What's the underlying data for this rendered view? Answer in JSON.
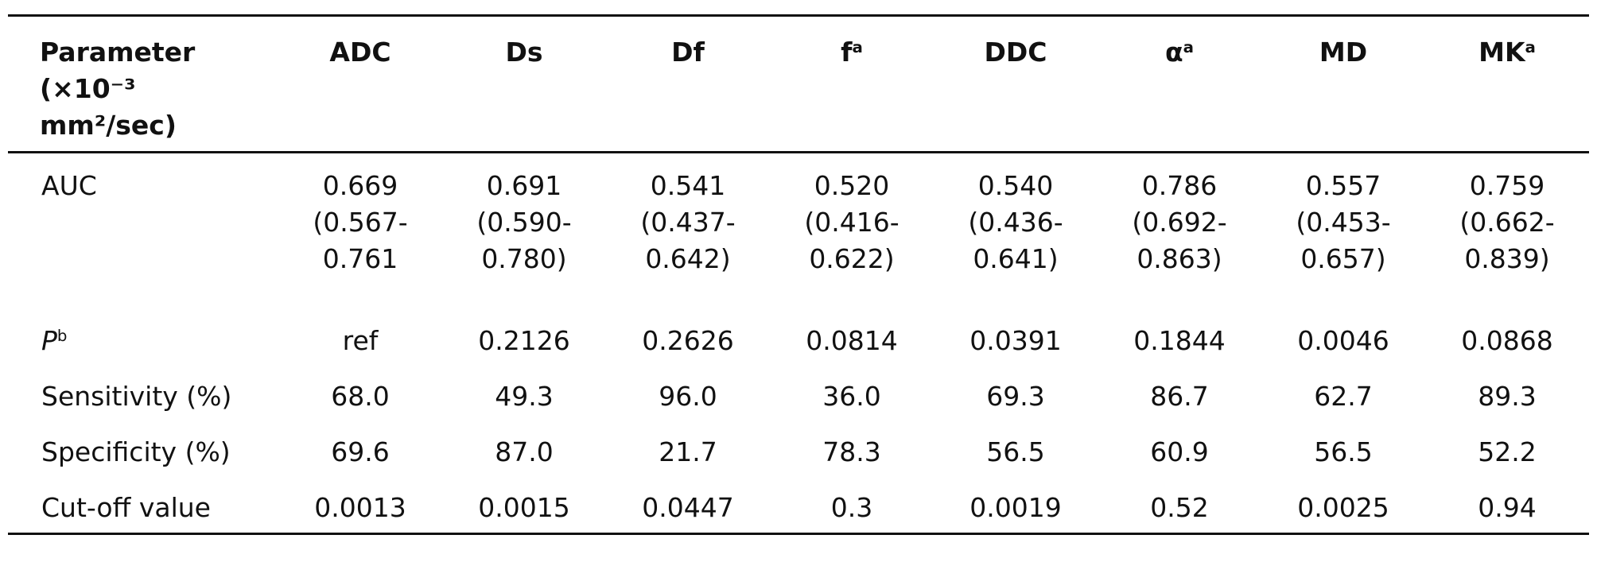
{
  "table": {
    "header": [
      "Parameter (×10⁻³ mm²/sec)",
      "ADC",
      "Ds",
      "Df",
      {
        "text": "f",
        "sup": "a"
      },
      "DDC",
      {
        "text": "α",
        "sup": "a"
      },
      "MD",
      {
        "text": "MK",
        "sup": "a"
      }
    ],
    "rows": [
      [
        "AUC",
        "0.669 (0.567-0.761",
        "0.691 (0.590-0.780)",
        "0.541 (0.437-0.642)",
        "0.520 (0.416-0.622)",
        "0.540 (0.436-0.641)",
        "0.786 (0.692-0.863)",
        "0.557 (0.453-0.657)",
        "0.759 (0.662-0.839)"
      ],
      [
        {
          "text": "P",
          "sup": "b"
        },
        "ref",
        "0.2126",
        "0.2626",
        "0.0814",
        "0.0391",
        "0.1844",
        "0.0046",
        "0.0868"
      ],
      [
        "Sensitivity (%)",
        "68.0",
        "49.3",
        "96.0",
        "36.0",
        "69.3",
        "86.7",
        "62.7",
        "89.3"
      ],
      [
        "Specificity (%)",
        "69.6",
        "87.0",
        "21.7",
        "78.3",
        "56.5",
        "60.9",
        "56.5",
        "52.2"
      ],
      [
        "Cut-off value",
        "0.0013",
        "0.0015",
        "0.0447",
        "0.3",
        "0.0019",
        "0.52",
        "0.0025",
        "0.94"
      ]
    ]
  }
}
